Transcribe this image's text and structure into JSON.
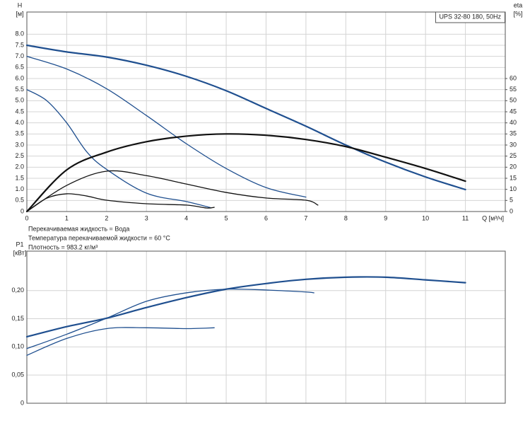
{
  "chart_data": [
    {
      "type": "line",
      "title": "UPS 32-80 180, 50Hz",
      "ylabel": "H",
      "yunit": "[м]",
      "y2label": "eta",
      "y2unit": "[%]",
      "xlabel": "Q [м³/ч]",
      "notes": [
        "Перекачиваемая жидкость = Вода",
        "Температура перекачиваемой жидкости = 60 °C",
        "Плотность = 983.2 кг/м³"
      ],
      "xlim": [
        0,
        12
      ],
      "xticks": [
        0,
        1,
        2,
        3,
        4,
        5,
        6,
        7,
        8,
        9,
        10,
        11
      ],
      "show_xtick_labels": true,
      "ylim": [
        0,
        9
      ],
      "yticks": [
        0,
        0.5,
        {
          "value": 1,
          "label": "1.0"
        },
        1.5,
        {
          "value": 2,
          "label": "2.0"
        },
        2.5,
        {
          "value": 3,
          "label": "3.0"
        },
        3.5,
        {
          "value": 4,
          "label": "4.0"
        },
        4.5,
        {
          "value": 5,
          "label": "5.0"
        },
        5.5,
        {
          "value": 6,
          "label": "6.0"
        },
        6.5,
        {
          "value": 7,
          "label": "7.0"
        },
        7.5,
        {
          "value": 8,
          "label": "8.0"
        }
      ],
      "y2lim": [
        0,
        90
      ],
      "y2ticks": [
        0,
        5,
        10,
        15,
        20,
        25,
        30,
        35,
        40,
        45,
        50,
        55,
        60
      ],
      "grid": true,
      "series": [
        {
          "color": "#1f4f8f",
          "x": [
            0,
            1,
            2,
            3,
            4,
            5,
            6,
            7,
            8,
            9,
            10,
            11
          ],
          "values": [
            7.5,
            7.2,
            6.97,
            6.6,
            6.1,
            5.45,
            4.65,
            3.85,
            3.0,
            2.23,
            1.56,
            0.99
          ]
        },
        {
          "color": "#1f4f8f",
          "x": [
            0,
            1,
            2,
            3,
            4,
            5,
            6,
            7
          ],
          "values": [
            7.0,
            6.43,
            5.54,
            4.33,
            3.06,
            1.94,
            1.08,
            0.65
          ]
        },
        {
          "color": "#1f4f8f",
          "x": [
            0,
            0.5,
            1,
            1.5,
            2,
            3,
            4,
            4.6
          ],
          "values": [
            5.5,
            5.0,
            4.0,
            2.7,
            1.9,
            0.83,
            0.45,
            0.18
          ]
        },
        {
          "color": "#111111",
          "axis": "y2",
          "x": [
            0,
            1,
            2,
            3,
            4,
            5,
            6,
            7,
            8,
            9,
            10,
            11
          ],
          "values": [
            0,
            18.8,
            26.8,
            31.5,
            34,
            35,
            34.4,
            32.5,
            29.3,
            24.5,
            19.4,
            13.7
          ]
        },
        {
          "color": "#111111",
          "axis": "y2",
          "x": [
            0,
            1,
            2,
            3,
            4,
            5,
            6,
            7,
            7.3
          ],
          "values": [
            0,
            11.8,
            18.2,
            16.2,
            12.4,
            8.6,
            6.1,
            5.1,
            2.9
          ]
        },
        {
          "color": "#111111",
          "axis": "y2",
          "x": [
            0,
            0.5,
            1,
            1.5,
            2,
            3,
            4,
            4.5,
            4.7
          ],
          "values": [
            0,
            6,
            8,
            7,
            5.1,
            3.5,
            2.9,
            1.6,
            1.9
          ]
        }
      ]
    },
    {
      "type": "line",
      "ylabel": "P1",
      "yunit": "[кВт]",
      "xlim": [
        0,
        12
      ],
      "xticks": [
        0,
        1,
        2,
        3,
        4,
        5,
        6,
        7,
        8,
        9,
        10,
        11
      ],
      "show_xtick_labels": false,
      "ylim": [
        0,
        0.27
      ],
      "yticks": [
        0,
        {
          "value": 0.05,
          "label": "0,05"
        },
        {
          "value": 0.1,
          "label": "0,10"
        },
        {
          "value": 0.15,
          "label": "0,15"
        },
        {
          "value": 0.2,
          "label": "0,20"
        }
      ],
      "grid": true,
      "series": [
        {
          "color": "#1f4f8f",
          "x": [
            0,
            1,
            2,
            3,
            4,
            5,
            6,
            7,
            8,
            9,
            10,
            11
          ],
          "values": [
            0.118,
            0.136,
            0.151,
            0.17,
            0.1875,
            0.2025,
            0.2125,
            0.22,
            0.2237,
            0.2237,
            0.219,
            0.214
          ]
        },
        {
          "color": "#1f4f8f",
          "x": [
            0,
            1,
            2,
            3,
            4,
            5,
            6,
            7,
            7.2
          ],
          "values": [
            0.097,
            0.1225,
            0.151,
            0.181,
            0.196,
            0.2025,
            0.201,
            0.1975,
            0.196
          ]
        },
        {
          "color": "#1f4f8f",
          "x": [
            0,
            1,
            2,
            3,
            4,
            4.7
          ],
          "values": [
            0.085,
            0.115,
            0.1325,
            0.134,
            0.1325,
            0.134
          ]
        }
      ]
    }
  ]
}
